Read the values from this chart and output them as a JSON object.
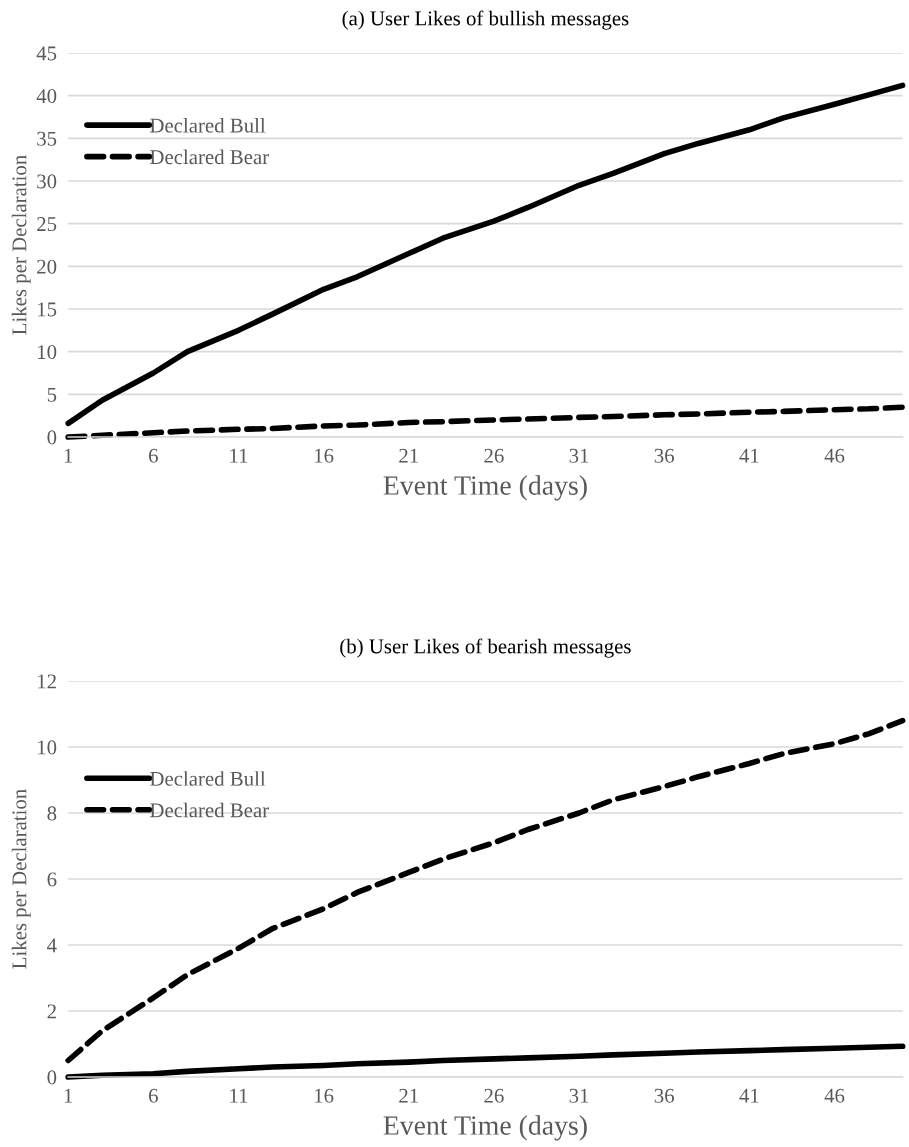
{
  "chart_data": [
    {
      "type": "line",
      "title": "(a) User Likes of bullish messages",
      "xlabel": "Event Time (days)",
      "ylabel": "Likes per Declaration",
      "x": [
        1,
        3,
        6,
        8,
        11,
        13,
        16,
        18,
        21,
        23,
        26,
        28,
        31,
        33,
        36,
        38,
        41,
        43,
        46,
        48,
        50
      ],
      "series": [
        {
          "name": "Declared Bull",
          "color": "#000000",
          "line_style": "solid",
          "values": [
            1.6,
            4.3,
            7.5,
            10,
            12.5,
            14.4,
            17.3,
            18.8,
            21.5,
            23.3,
            25.3,
            26.9,
            29.5,
            30.9,
            33.2,
            34.4,
            36.0,
            37.4,
            39.0,
            40.1,
            41.2
          ]
        },
        {
          "name": "Declared Bear",
          "color": "#000000",
          "line_style": "dashed",
          "values": [
            0,
            0.2,
            0.5,
            0.7,
            0.9,
            1.0,
            1.3,
            1.4,
            1.7,
            1.8,
            2.0,
            2.1,
            2.3,
            2.4,
            2.6,
            2.7,
            2.9,
            3.0,
            3.2,
            3.3,
            3.5
          ]
        }
      ],
      "xlim": [
        1,
        50
      ],
      "xticks": [
        1,
        6,
        11,
        16,
        21,
        26,
        31,
        36,
        41,
        46
      ],
      "ylim": [
        0,
        45
      ],
      "yticks": [
        0,
        5,
        10,
        15,
        20,
        25,
        30,
        35,
        40,
        45
      ],
      "grid": "y",
      "legend": "top left",
      "marker": "none"
    },
    {
      "type": "line",
      "title": "(b) User Likes of bearish messages",
      "xlabel": "Event Time (days)",
      "ylabel": "Likes per Declaration",
      "x": [
        1,
        3,
        6,
        8,
        11,
        13,
        16,
        18,
        21,
        23,
        26,
        28,
        31,
        33,
        36,
        38,
        41,
        43,
        46,
        48,
        50
      ],
      "series": [
        {
          "name": "Declared Bull",
          "color": "#000000",
          "line_style": "solid",
          "values": [
            0,
            0.05,
            0.1,
            0.17,
            0.25,
            0.3,
            0.35,
            0.4,
            0.45,
            0.5,
            0.55,
            0.58,
            0.63,
            0.67,
            0.72,
            0.76,
            0.8,
            0.83,
            0.87,
            0.9,
            0.93
          ]
        },
        {
          "name": "Declared Bear",
          "color": "#000000",
          "line_style": "dashed",
          "values": [
            0.5,
            1.4,
            2.4,
            3.1,
            3.9,
            4.5,
            5.1,
            5.6,
            6.2,
            6.6,
            7.1,
            7.5,
            8.0,
            8.4,
            8.8,
            9.1,
            9.5,
            9.8,
            10.1,
            10.4,
            10.8
          ]
        }
      ],
      "xlim": [
        1,
        50
      ],
      "xticks": [
        1,
        6,
        11,
        16,
        21,
        26,
        31,
        36,
        41,
        46
      ],
      "ylim": [
        0,
        12
      ],
      "yticks": [
        0,
        2,
        4,
        6,
        8,
        10,
        12
      ],
      "grid": "y",
      "legend": "top left",
      "marker": "none"
    }
  ]
}
